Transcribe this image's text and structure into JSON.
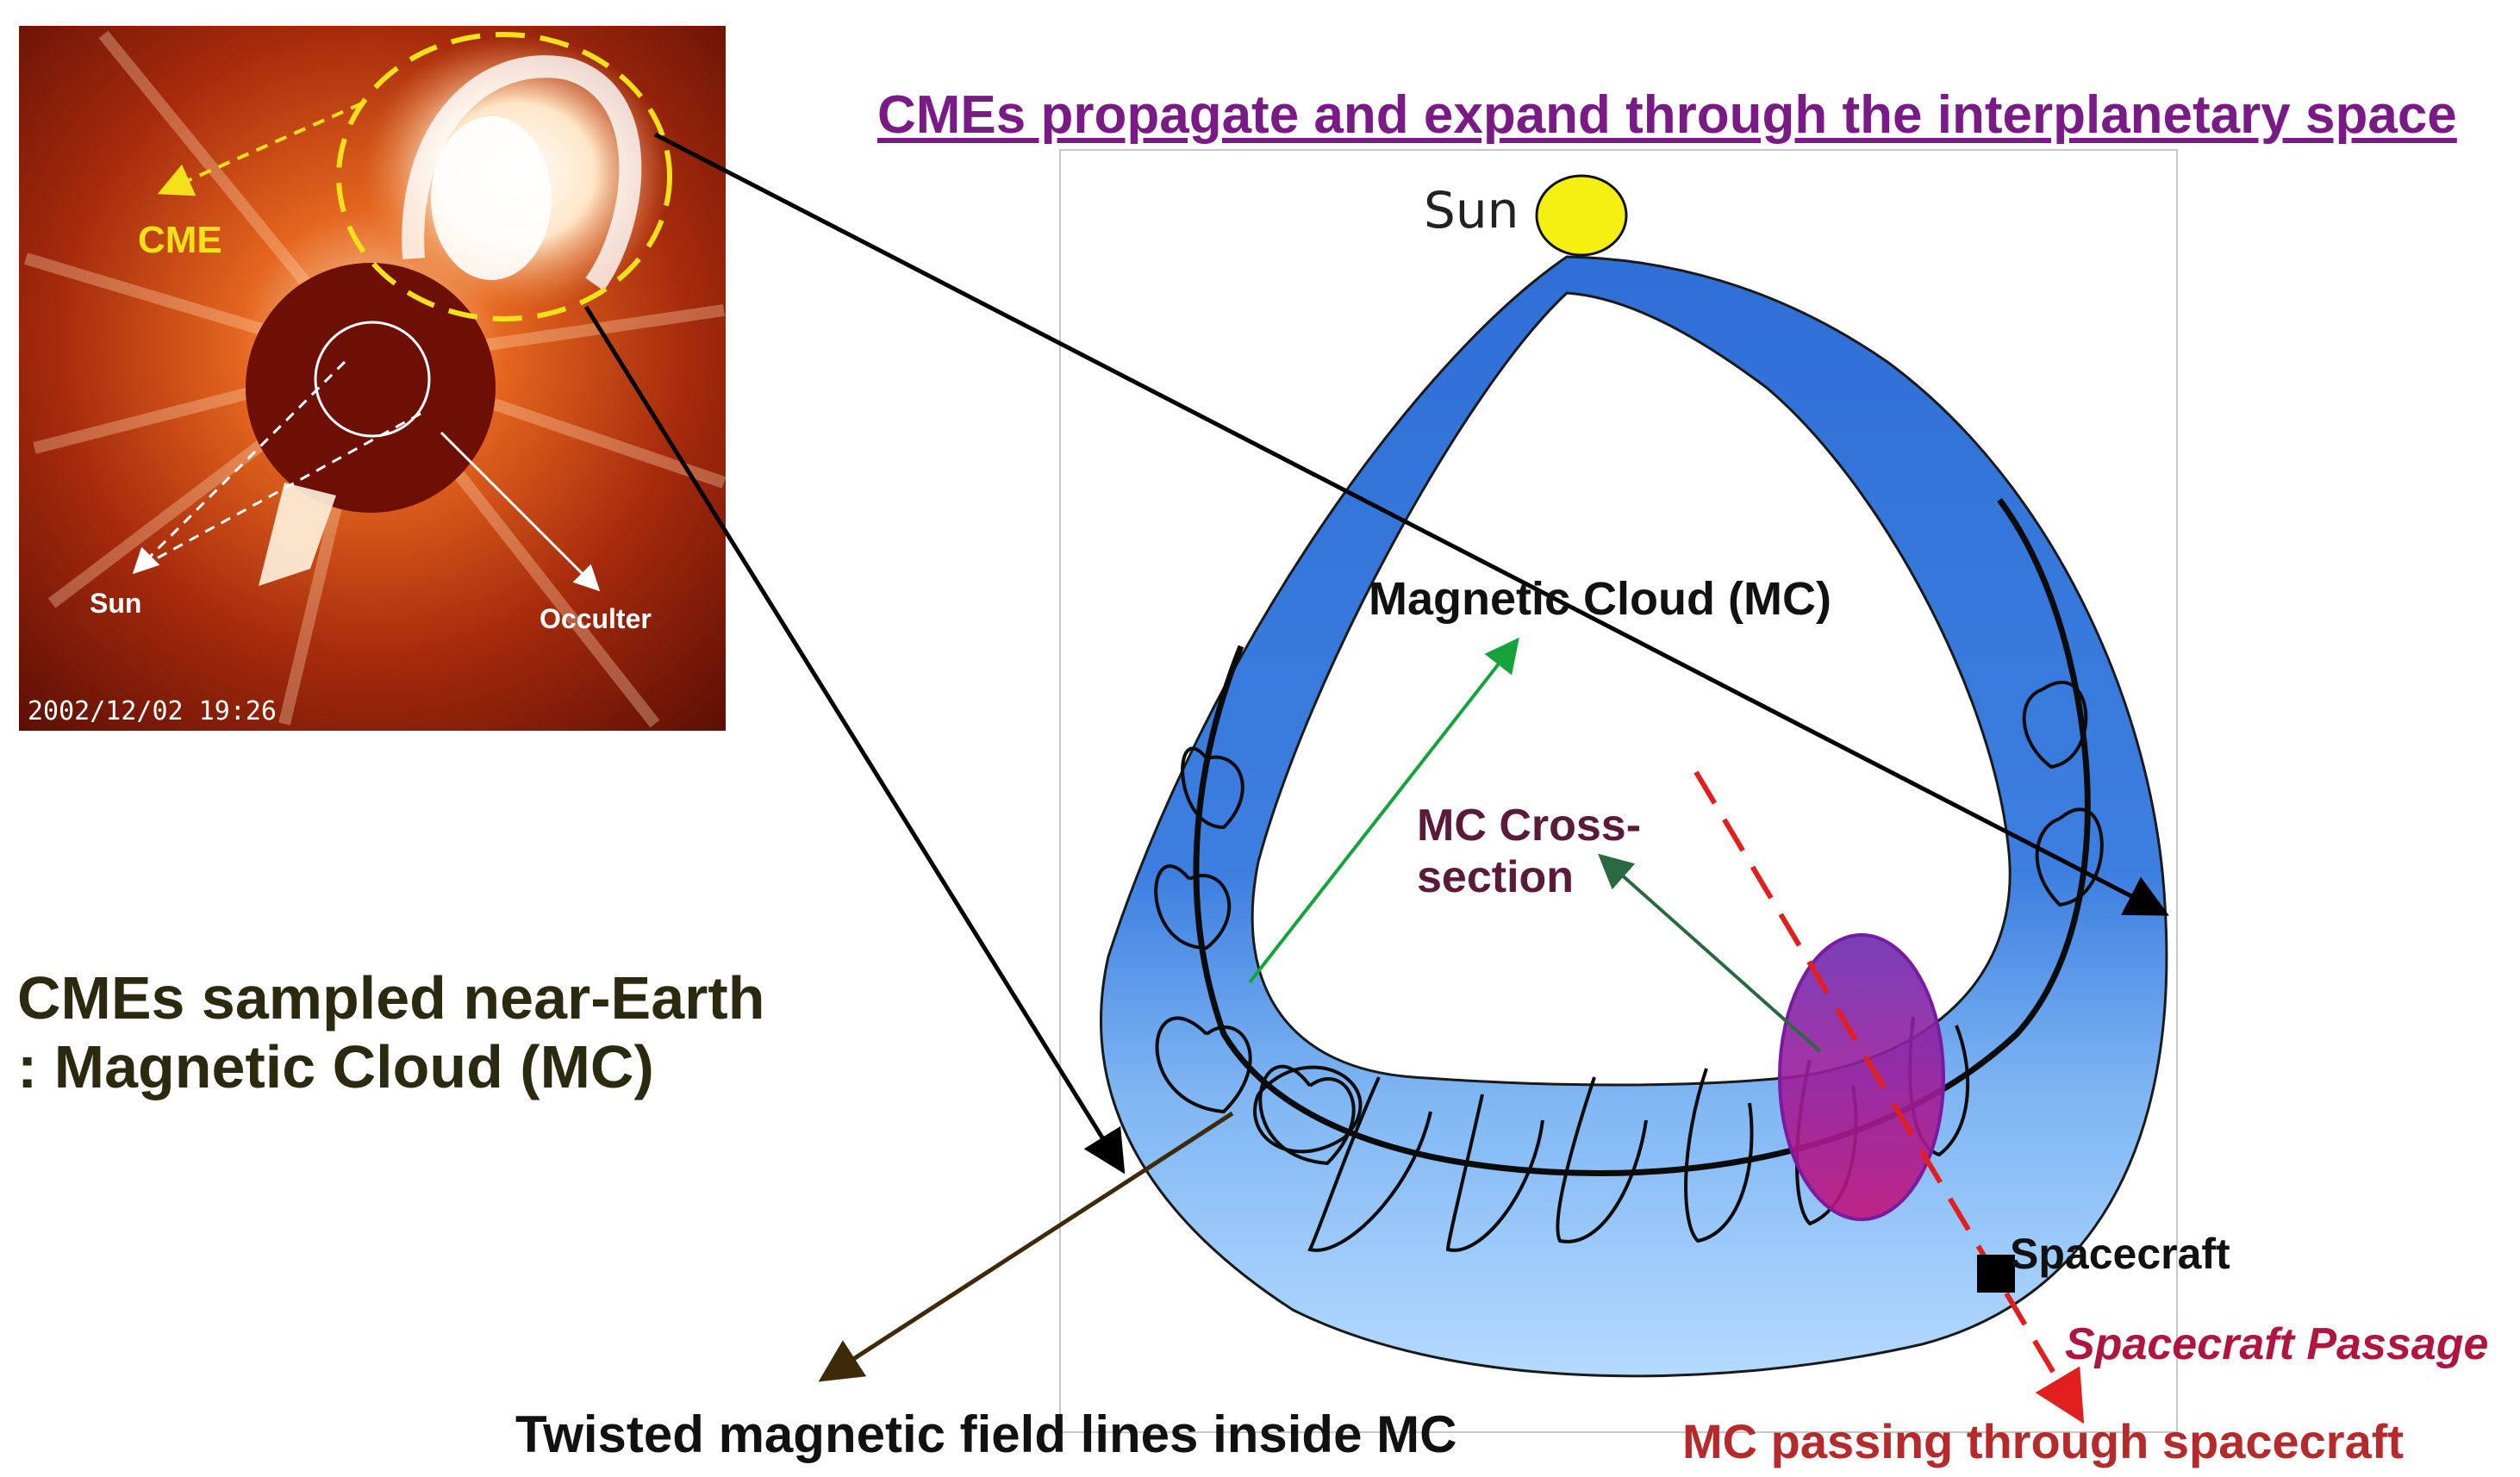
{
  "header": {
    "title": "CMEs propagate and expand through the interplanetary space"
  },
  "left": {
    "sampled_line1": "CMEs sampled near-Earth",
    "sampled_line2": ": Magnetic Cloud (MC)",
    "twisted_label": "Twisted magnetic field lines inside MC"
  },
  "coronagraph": {
    "cme_label": "CME",
    "sun_label": "Sun",
    "occulter_label": "Occulter",
    "timestamp": "2002/12/02 19:26",
    "colors": {
      "background": "#8a1a08",
      "cme_outline": "#f4e11a"
    }
  },
  "diagram": {
    "sun_label": "Sun",
    "mc_label": "Magnetic Cloud (MC)",
    "cross_line1": "MC Cross-",
    "cross_line2": "section",
    "spacecraft_label": "Spacecraft",
    "passage_label": "Spacecraft Passage",
    "mc_passing_label": "MC passing through spacecraft",
    "colors": {
      "tube_dark": "#2f6fd6",
      "tube_light": "#a9d3fb",
      "sun": "#f5f011",
      "cross_section": "#8a1a9a",
      "trajectory": "#e11f1f"
    }
  }
}
